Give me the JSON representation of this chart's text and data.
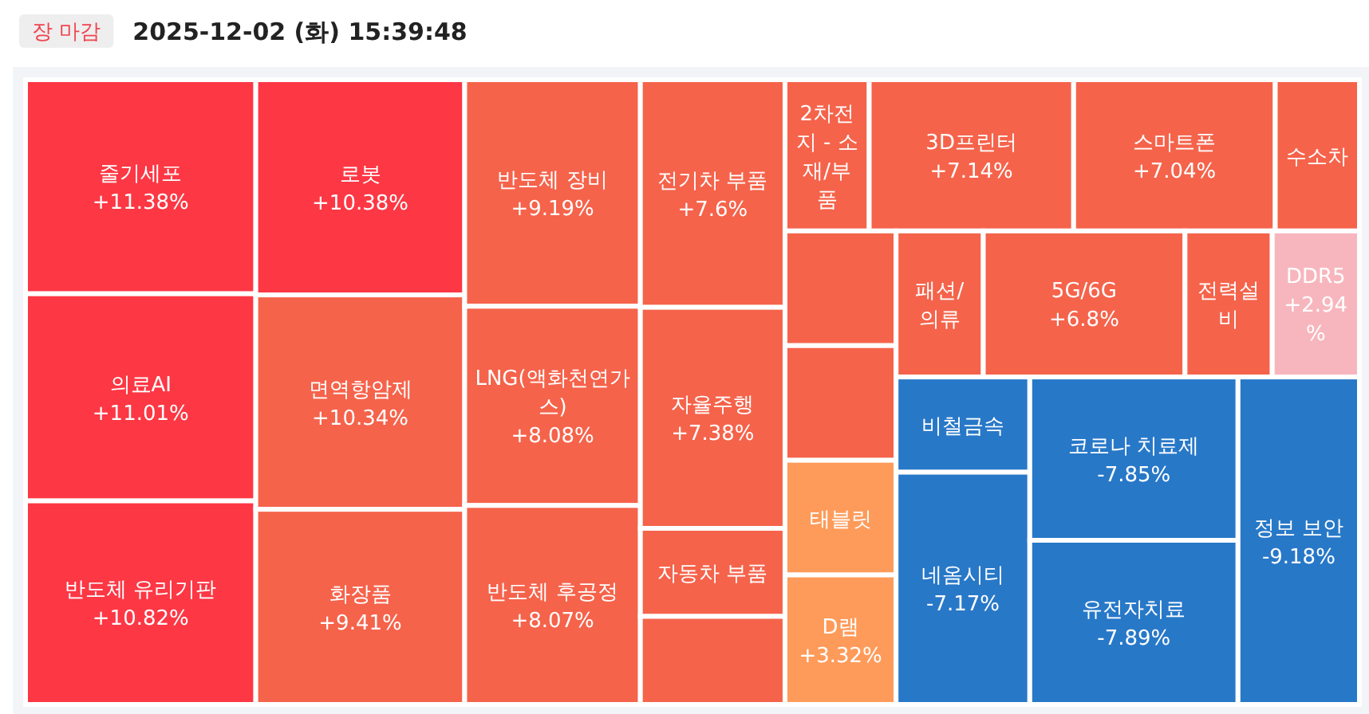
{
  "chart_data": {
    "type": "other",
    "title": "2025-12-02 (화) 15:39:48",
    "annotations": [
      "장 마감"
    ],
    "categories": [
      "줄기세포",
      "의료AI",
      "반도체 유리기판",
      "로봇",
      "면역항암제",
      "화장품",
      "반도체 장비",
      "LNG(액화천연가스)",
      "반도체 후공정",
      "전기차 부품",
      "자율주행",
      "자동차 부품",
      null,
      "2차전지 - 소재/부품",
      "3D프린터",
      "스마트폰",
      "수소차",
      null,
      null,
      "태블릿",
      "D램",
      "패션/의류",
      "5G/6G",
      "전력설비",
      "DDR5",
      "비철금속",
      "네옴시티",
      "코로나 치료제",
      "유전자치료",
      "정보 보안"
    ],
    "values": [
      11.38,
      11.01,
      10.82,
      10.38,
      10.34,
      9.41,
      9.19,
      8.08,
      8.07,
      7.6,
      7.38,
      null,
      null,
      null,
      7.14,
      7.04,
      null,
      null,
      null,
      null,
      3.32,
      null,
      6.8,
      null,
      2.94,
      null,
      -7.17,
      -7.85,
      -7.89,
      -9.18
    ],
    "value_labels": [
      "+11.38%",
      "+11.01%",
      "+10.82%",
      "+10.38%",
      "+10.34%",
      "+9.41%",
      "+9.19%",
      "+8.08%",
      "+8.07%",
      "+7.6%",
      "+7.38%",
      null,
      null,
      null,
      "+7.14%",
      "+7.04%",
      null,
      null,
      null,
      null,
      "+3.32%",
      null,
      "+6.8%",
      null,
      "+2.94%",
      null,
      "-7.17%",
      "-7.85%",
      "-7.89%",
      "-9.18%"
    ],
    "colors": [
      "#fd3744",
      "#fd3744",
      "#fd3744",
      "#fd3744",
      "#f5634b",
      "#f5634b",
      "#f5634b",
      "#f5634b",
      "#f5634b",
      "#f5634b",
      "#f5634b",
      "#f5634b",
      "#f5634b",
      "#f5634b",
      "#f5634b",
      "#f5634b",
      "#f5634b",
      "#f5634b",
      "#f5634b",
      "#fe9b5a",
      "#fe9b5a",
      "#f5634b",
      "#f5634b",
      "#f5634b",
      "#f7b6bd",
      "#2878c8",
      "#2878c8",
      "#2878c8",
      "#2878c8",
      "#2878c8"
    ]
  }
}
